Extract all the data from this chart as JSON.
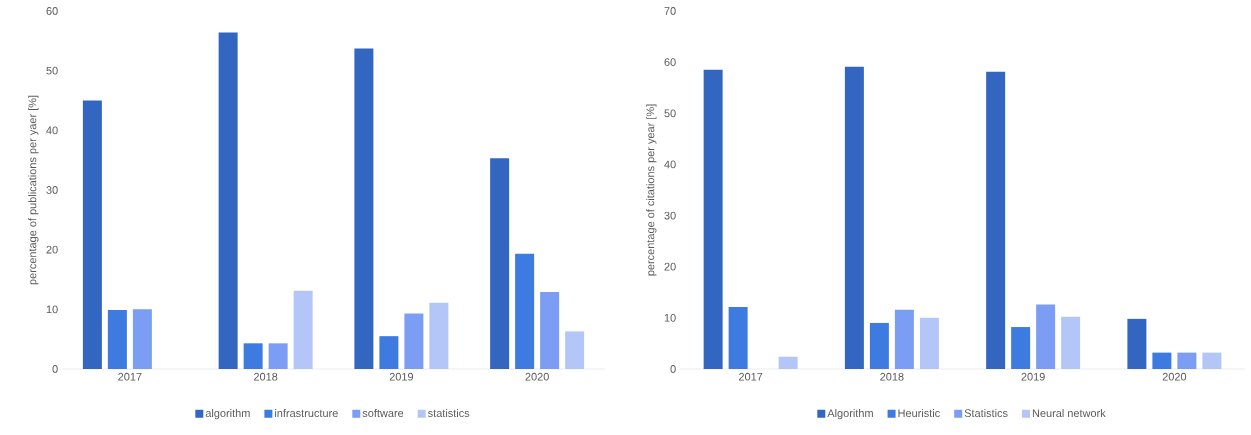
{
  "chart_data": [
    {
      "type": "bar",
      "ylabel": "percentage of publications per yaer [%]",
      "categories": [
        "2017",
        "2018",
        "2019",
        "2020"
      ],
      "ylim": [
        0,
        60
      ],
      "yticks": [
        0,
        10,
        20,
        30,
        40,
        50,
        60
      ],
      "legend": "bottom",
      "series": [
        {
          "name": "algorithm",
          "color": "#3366c0",
          "values": [
            45,
            56.4,
            53.7,
            35.3
          ]
        },
        {
          "name": "infrastructure",
          "color": "#3d7be0",
          "values": [
            9.9,
            4.3,
            5.5,
            19.3
          ]
        },
        {
          "name": "software",
          "color": "#7b9ef4",
          "values": [
            10,
            4.3,
            9.3,
            12.9
          ]
        },
        {
          "name": "statistics",
          "color": "#b4c6f8",
          "values": [
            0,
            13.1,
            11.1,
            6.3
          ]
        }
      ]
    },
    {
      "type": "bar",
      "ylabel": "percentage of citations per year [%]",
      "categories": [
        "2017",
        "2018",
        "2019",
        "2020"
      ],
      "ylim": [
        0,
        70
      ],
      "yticks": [
        0,
        10,
        20,
        30,
        40,
        50,
        60,
        70
      ],
      "legend": "bottom",
      "series": [
        {
          "name": "Algorithm",
          "color": "#3366c0",
          "values": [
            58.5,
            59.1,
            58.1,
            9.8
          ]
        },
        {
          "name": "Heuristic",
          "color": "#3d7be0",
          "values": [
            12.1,
            9,
            8.2,
            3.2
          ]
        },
        {
          "name": "Statistics",
          "color": "#7b9ef4",
          "values": [
            0,
            11.6,
            12.6,
            3.2
          ]
        },
        {
          "name": "Neural network",
          "color": "#b4c6f8",
          "values": [
            2.4,
            10,
            10.2,
            3.2
          ]
        }
      ]
    }
  ]
}
